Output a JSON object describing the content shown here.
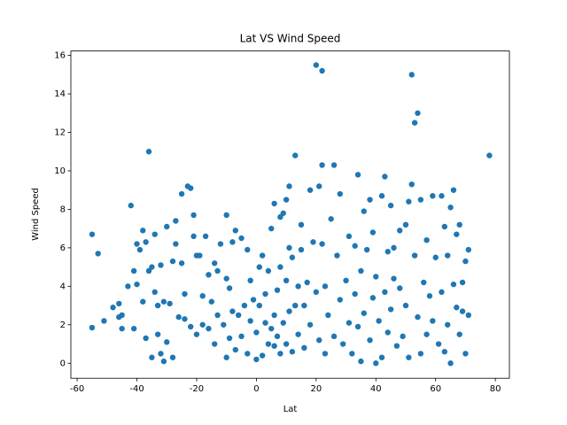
{
  "chart_data": {
    "type": "scatter",
    "title": "Lat VS Wind Speed",
    "x_label": "Lat",
    "y_label": "Wind Speed",
    "color": "#1f77b4",
    "x": [
      -55,
      -55,
      -53,
      -51,
      -48,
      -46,
      -46,
      -45,
      -45,
      -43,
      -42,
      -41,
      -41,
      -40,
      -40,
      -39,
      -38,
      -38,
      -37,
      -37,
      -36,
      -36,
      -35,
      -35,
      -34,
      -34,
      -33,
      -33,
      -32,
      -32,
      -31,
      -31,
      -30,
      -30,
      -29,
      -28,
      -28,
      -27,
      -27,
      -26,
      -25,
      -25,
      -24,
      -24,
      -23,
      -22,
      -22,
      -21,
      -21,
      -20,
      -20,
      -19,
      -18,
      -18,
      -17,
      -16,
      -16,
      -15,
      -14,
      -14,
      -13,
      -13,
      -12,
      -11,
      -10,
      -10,
      -10,
      -9,
      -9,
      -8,
      -8,
      -7,
      -7,
      -6,
      -5,
      -5,
      -4,
      -3,
      -3,
      -2,
      -2,
      -1,
      0,
      0,
      1,
      1,
      2,
      2,
      3,
      3,
      4,
      4,
      5,
      5,
      6,
      6,
      6,
      7,
      7,
      8,
      8,
      8,
      9,
      9,
      10,
      10,
      10,
      11,
      11,
      11,
      12,
      12,
      13,
      13,
      14,
      14,
      15,
      15,
      16,
      16,
      17,
      18,
      18,
      19,
      20,
      20,
      21,
      21,
      22,
      22,
      22,
      23,
      23,
      24,
      25,
      26,
      26,
      27,
      28,
      28,
      29,
      30,
      31,
      31,
      32,
      33,
      33,
      34,
      34,
      35,
      35,
      36,
      36,
      37,
      38,
      38,
      39,
      39,
      40,
      40,
      41,
      42,
      42,
      43,
      43,
      44,
      44,
      45,
      45,
      46,
      46,
      47,
      48,
      48,
      49,
      50,
      50,
      51,
      51,
      52,
      52,
      53,
      53,
      54,
      54,
      55,
      55,
      56,
      57,
      57,
      58,
      59,
      59,
      60,
      61,
      62,
      62,
      63,
      63,
      64,
      64,
      65,
      65,
      66,
      66,
      67,
      67,
      68,
      68,
      69,
      69,
      70,
      70,
      71,
      71,
      78
    ],
    "values": [
      6.7,
      1.85,
      5.7,
      2.2,
      2.9,
      3.1,
      2.4,
      1.8,
      2.5,
      4.0,
      8.2,
      4.8,
      1.8,
      6.2,
      4.1,
      5.9,
      6.9,
      3.2,
      6.3,
      1.3,
      11.0,
      4.8,
      0.3,
      5.0,
      6.7,
      3.7,
      3.0,
      1.5,
      5.1,
      0.5,
      0.1,
      3.2,
      7.1,
      1.1,
      3.1,
      5.3,
      0.3,
      6.2,
      7.4,
      2.4,
      8.8,
      5.2,
      3.6,
      2.3,
      9.2,
      9.1,
      1.9,
      7.7,
      6.6,
      5.6,
      1.5,
      5.6,
      3.5,
      2.0,
      6.6,
      4.6,
      1.8,
      3.2,
      5.2,
      1.0,
      4.8,
      2.5,
      6.2,
      2.0,
      7.7,
      4.4,
      0.3,
      3.9,
      1.3,
      6.3,
      2.7,
      6.9,
      0.7,
      2.5,
      6.5,
      1.4,
      3.0,
      5.9,
      0.5,
      4.3,
      2.2,
      3.3,
      0.2,
      1.6,
      5.0,
      3.0,
      0.4,
      5.6,
      2.1,
      3.6,
      1.0,
      4.8,
      1.8,
      7.0,
      8.3,
      2.5,
      0.9,
      3.8,
      1.4,
      7.6,
      5.0,
      0.5,
      2.1,
      7.8,
      8.5,
      4.3,
      1.0,
      9.2,
      6.0,
      2.7,
      0.6,
      5.5,
      3.0,
      10.8,
      4.0,
      1.5,
      7.2,
      5.9,
      3.0,
      0.8,
      4.2,
      9.0,
      2.0,
      6.3,
      15.5,
      3.7,
      9.2,
      1.2,
      15.2,
      10.3,
      6.2,
      4.0,
      0.5,
      2.5,
      7.5,
      10.3,
      1.4,
      5.6,
      8.8,
      3.3,
      1.0,
      4.3,
      2.1,
      6.6,
      0.5,
      6.1,
      3.6,
      9.8,
      1.9,
      0.1,
      4.8,
      7.9,
      2.6,
      5.9,
      1.2,
      8.5,
      6.8,
      3.4,
      0.0,
      4.5,
      2.2,
      8.7,
      0.3,
      9.7,
      3.7,
      5.8,
      1.6,
      8.2,
      2.8,
      6.0,
      4.4,
      0.9,
      3.9,
      6.9,
      1.4,
      7.2,
      3.0,
      8.4,
      0.3,
      15.0,
      9.3,
      12.5,
      5.6,
      13.0,
      2.4,
      8.5,
      0.5,
      4.2,
      6.4,
      1.5,
      3.5,
      8.7,
      2.2,
      5.5,
      1.0,
      8.7,
      3.7,
      7.1,
      0.6,
      5.6,
      2.0,
      8.1,
      0.0,
      9.0,
      4.1,
      2.9,
      6.7,
      7.2,
      1.5,
      4.2,
      2.7,
      5.3,
      0.5,
      2.5,
      5.9,
      10.8
    ],
    "xlim": [
      -62.1,
      84.7
    ],
    "ylim": [
      -0.78,
      16.23
    ],
    "xticks": [
      -60,
      -40,
      -20,
      0,
      20,
      40,
      60,
      80
    ],
    "yticks": [
      0,
      2,
      4,
      6,
      8,
      10,
      12,
      14,
      16
    ]
  }
}
